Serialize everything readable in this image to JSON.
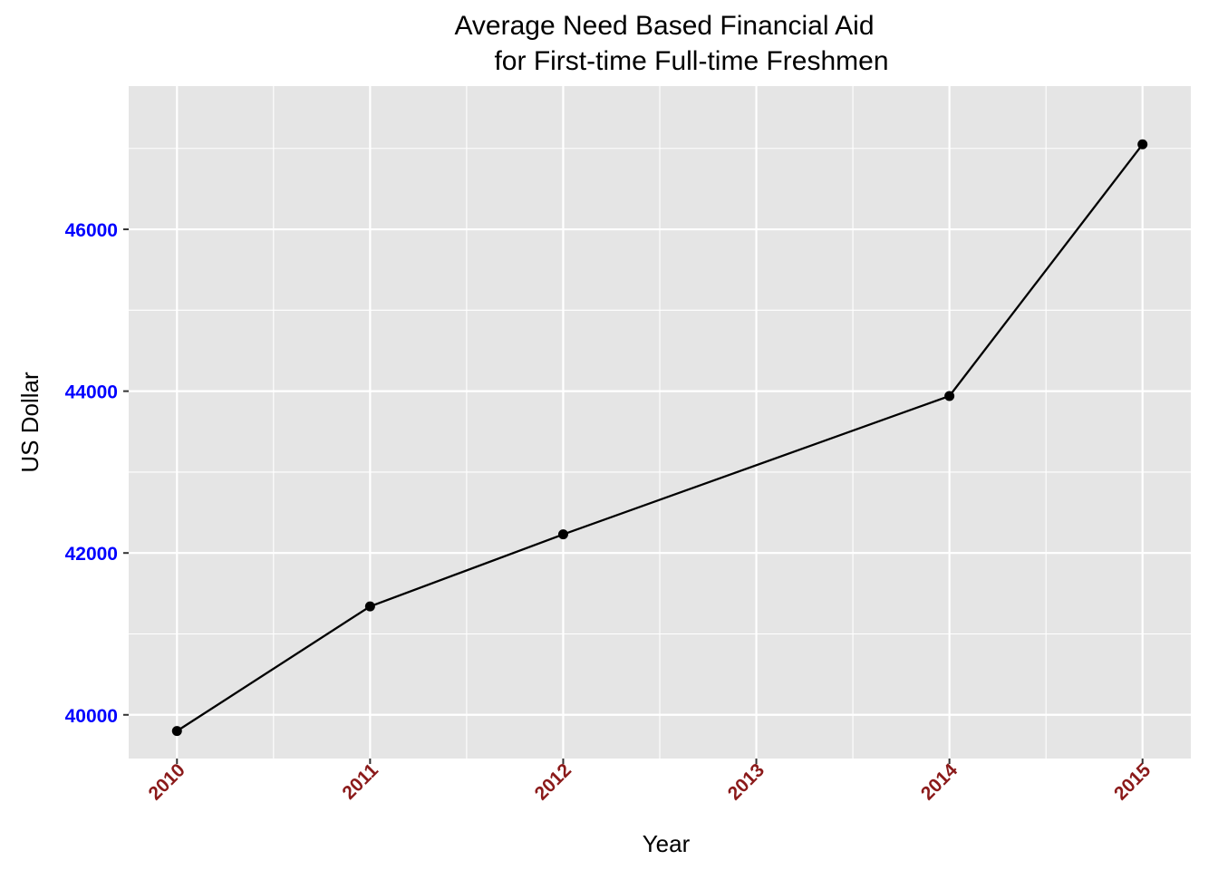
{
  "chart_data": {
    "type": "line",
    "title_lines": [
      "Average Need Based Financial Aid",
      "for First-time Full-time Freshmen"
    ],
    "xlabel": "Year",
    "ylabel": "US Dollar",
    "x": [
      2010,
      2011,
      2012,
      2014,
      2015
    ],
    "y": [
      39800,
      41340,
      42230,
      43940,
      47050
    ],
    "x_ticks": [
      "2010",
      "2011",
      "2012",
      "2013",
      "2014",
      "2015"
    ],
    "y_ticks": [
      "40000",
      "42000",
      "44000",
      "46000"
    ],
    "xlim": [
      2009.75,
      2015.25
    ],
    "ylim": [
      39460,
      47770
    ],
    "grid": true,
    "legend": "none",
    "colors": {
      "panel_background": "#E5E5E5",
      "grid": "#FFFFFF",
      "line": "#000000",
      "points": "#000000",
      "y_tick_labels": "#0000FF",
      "x_tick_labels": "#8B1A1A"
    }
  }
}
